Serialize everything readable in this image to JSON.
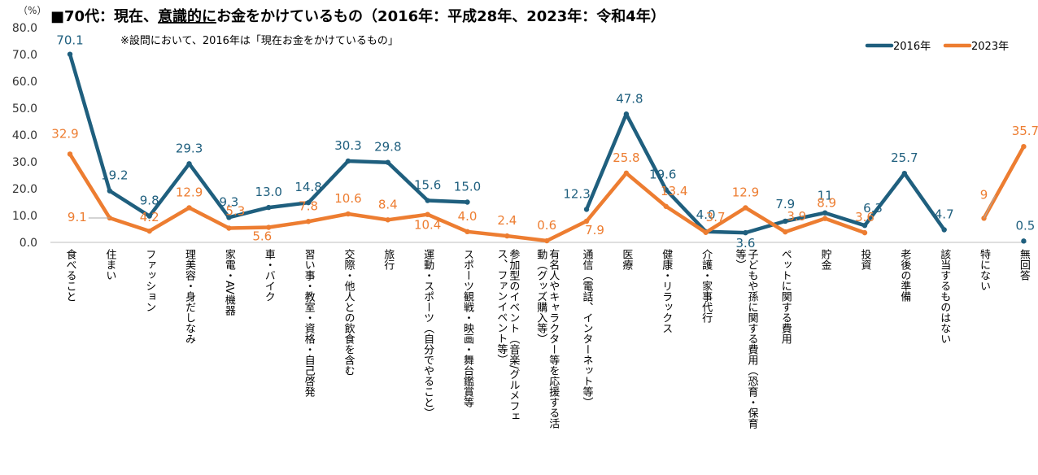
{
  "title_prefix": "■70代：現在、",
  "title_underlined": "意識的に",
  "title_suffix": "お金をかけているもの（2016年：平成28年、2023年：令和4年）",
  "note": "※設問において、2016年は「現在お金をかけているもの」",
  "colors": {
    "s2016": "#1f5f7e",
    "s2023": "#ed7d31",
    "axis": "#bfbfbf"
  },
  "chart_data": {
    "type": "line",
    "yunit": "（%）",
    "ylim": [
      0,
      80
    ],
    "yticks": [
      "0.0",
      "10.0",
      "20.0",
      "30.0",
      "40.0",
      "50.0",
      "60.0",
      "70.0",
      "80.0"
    ],
    "legend_position": "top-right",
    "categories": [
      "食べること",
      "住まい",
      "ファッション",
      "理美容・身だしなみ",
      "家電・AV機器",
      "車・バイク",
      "習い事・教室・資格・自己啓発",
      "交際・他人との飲食を含む",
      "旅行",
      "運動・スポーツ（自分でやること）",
      "スポーツ観戦・映画・舞台鑑賞等",
      "参加型のイベント（音楽/グルメフェス、ファンイベント等）",
      "有名人やキャラクター等を応援する活動（グッズ購入等）",
      "通信（電話、インターネット等）",
      "医療",
      "健康・リラックス",
      "介護・家事代行",
      "子どもや孫に関する費用（恐育・保育等）",
      "ペットに関する費用",
      "貯金",
      "投資",
      "老後の準備",
      "該当するものはない",
      "特にない",
      "無回答"
    ],
    "series": [
      {
        "name": "2016年",
        "values": [
          70.1,
          19.2,
          9.8,
          29.3,
          9.3,
          13.0,
          14.8,
          30.3,
          29.8,
          15.6,
          15.0,
          null,
          null,
          12.3,
          47.8,
          19.6,
          4.0,
          3.6,
          7.9,
          11,
          6.3,
          25.7,
          4.7,
          null,
          0.5
        ],
        "labels": [
          "70.1",
          "19.2",
          "9.8",
          "29.3",
          "9.3",
          "13.0",
          "14.8",
          "30.3",
          "29.8",
          "15.6",
          "15.0",
          "",
          "",
          "12.3",
          "47.8",
          "19.6",
          "4.0",
          "3.6",
          "7.9",
          "11",
          "6.3",
          "25.7",
          "4.7",
          "",
          "0.5"
        ]
      },
      {
        "name": "2023年",
        "values": [
          32.9,
          9.1,
          4.2,
          12.9,
          5.3,
          5.6,
          7.8,
          10.6,
          8.4,
          10.4,
          4.0,
          2.4,
          0.6,
          7.9,
          25.8,
          13.4,
          3.7,
          12.9,
          3.9,
          8.9,
          3.6,
          null,
          null,
          9,
          35.7
        ],
        "labels": [
          "32.9",
          "9.1",
          "4.2",
          "12.9",
          "5.3",
          "5.6",
          "7.8",
          "10.6",
          "8.4",
          "10.4",
          "4.0",
          "2.4",
          "0.6",
          "7.9",
          "25.8",
          "13.4",
          "3.7",
          "12.9",
          "3.9",
          "8.9",
          "3.6",
          "",
          "",
          "9",
          "35.7"
        ]
      }
    ]
  }
}
